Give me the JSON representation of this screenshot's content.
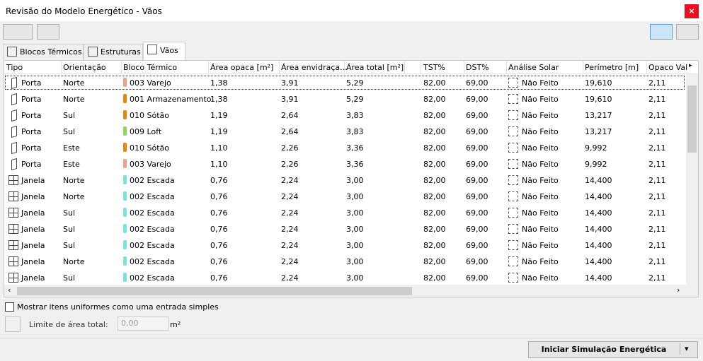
{
  "window": {
    "title": "Revisão do Modelo Energético - Vãos"
  },
  "tabs": [
    "Blocos Térmicos",
    "Estruturas",
    "Vãos"
  ],
  "table": {
    "columns": [
      "Tipo",
      "Orientação",
      "Bloco Térmico",
      "Área opaca [m²]",
      "Área envidraça...",
      "Área total [m²]",
      "TST%",
      "DST%",
      "Análise Solar",
      "Perímetro [m]",
      "Opaco Val"
    ],
    "rows": [
      {
        "type": "Porta",
        "orientation": "Norte",
        "block": "003 Varejo",
        "block_color": "#e8a393",
        "opaque": "1,38",
        "glazed": "3,91",
        "total": "5,29",
        "tst": "82,00",
        "dst": "69,00",
        "solar": "Não Feito",
        "perimeter": "19,610",
        "opaque_val": "2,11"
      },
      {
        "type": "Porta",
        "orientation": "Norte",
        "block": "001 Armazenamento",
        "block_color": "#e08a12",
        "opaque": "1,38",
        "glazed": "3,91",
        "total": "5,29",
        "tst": "82,00",
        "dst": "69,00",
        "solar": "Não Feito",
        "perimeter": "19,610",
        "opaque_val": "2,11"
      },
      {
        "type": "Porta",
        "orientation": "Sul",
        "block": "010 Sótão",
        "block_color": "#e08a12",
        "opaque": "1,19",
        "glazed": "2,64",
        "total": "3,83",
        "tst": "82,00",
        "dst": "69,00",
        "solar": "Não Feito",
        "perimeter": "13,217",
        "opaque_val": "2,11"
      },
      {
        "type": "Porta",
        "orientation": "Sul",
        "block": "009 Loft",
        "block_color": "#8fd45e",
        "opaque": "1,19",
        "glazed": "2,64",
        "total": "3,83",
        "tst": "82,00",
        "dst": "69,00",
        "solar": "Não Feito",
        "perimeter": "13,217",
        "opaque_val": "2,11"
      },
      {
        "type": "Porta",
        "orientation": "Este",
        "block": "010 Sótão",
        "block_color": "#e08a12",
        "opaque": "1,10",
        "glazed": "2,26",
        "total": "3,36",
        "tst": "82,00",
        "dst": "69,00",
        "solar": "Não Feito",
        "perimeter": "9,992",
        "opaque_val": "2,11"
      },
      {
        "type": "Porta",
        "orientation": "Este",
        "block": "003 Varejo",
        "block_color": "#e8a393",
        "opaque": "1,10",
        "glazed": "2,26",
        "total": "3,36",
        "tst": "82,00",
        "dst": "69,00",
        "solar": "Não Feito",
        "perimeter": "9,992",
        "opaque_val": "2,11"
      },
      {
        "type": "Janela",
        "orientation": "Norte",
        "block": "002 Escada",
        "block_color": "#7fe0e0",
        "opaque": "0,76",
        "glazed": "2,24",
        "total": "3,00",
        "tst": "82,00",
        "dst": "69,00",
        "solar": "Não Feito",
        "perimeter": "14,400",
        "opaque_val": "2,11"
      },
      {
        "type": "Janela",
        "orientation": "Norte",
        "block": "002 Escada",
        "block_color": "#7fe0e0",
        "opaque": "0,76",
        "glazed": "2,24",
        "total": "3,00",
        "tst": "82,00",
        "dst": "69,00",
        "solar": "Não Feito",
        "perimeter": "14,400",
        "opaque_val": "2,11"
      },
      {
        "type": "Janela",
        "orientation": "Sul",
        "block": "002 Escada",
        "block_color": "#7fe0e0",
        "opaque": "0,76",
        "glazed": "2,24",
        "total": "3,00",
        "tst": "82,00",
        "dst": "69,00",
        "solar": "Não Feito",
        "perimeter": "14,400",
        "opaque_val": "2,11"
      },
      {
        "type": "Janela",
        "orientation": "Sul",
        "block": "002 Escada",
        "block_color": "#7fe0e0",
        "opaque": "0,76",
        "glazed": "2,24",
        "total": "3,00",
        "tst": "82,00",
        "dst": "69,00",
        "solar": "Não Feito",
        "perimeter": "14,400",
        "opaque_val": "2,11"
      },
      {
        "type": "Janela",
        "orientation": "Sul",
        "block": "002 Escada",
        "block_color": "#7fe0e0",
        "opaque": "0,76",
        "glazed": "2,24",
        "total": "3,00",
        "tst": "82,00",
        "dst": "69,00",
        "solar": "Não Feito",
        "perimeter": "14,400",
        "opaque_val": "2,11"
      },
      {
        "type": "Janela",
        "orientation": "Norte",
        "block": "002 Escada",
        "block_color": "#7fe0e0",
        "opaque": "0,76",
        "glazed": "2,24",
        "total": "3,00",
        "tst": "82,00",
        "dst": "69,00",
        "solar": "Não Feito",
        "perimeter": "14,400",
        "opaque_val": "2,11"
      },
      {
        "type": "Janela",
        "orientation": "Sul",
        "block": "002 Escada",
        "block_color": "#7fe0e0",
        "opaque": "0,76",
        "glazed": "2,24",
        "total": "3,00",
        "tst": "82,00",
        "dst": "69,00",
        "solar": "Não Feito",
        "perimeter": "14,400",
        "opaque_val": "2,11"
      }
    ]
  },
  "options": {
    "uniform_label": "Mostrar itens uniformes como uma entrada simples",
    "area_limit_label": "Limite de área total:",
    "area_limit_value": "0,00",
    "area_unit": "m²"
  },
  "button": "Iniciar Simulação Energética"
}
